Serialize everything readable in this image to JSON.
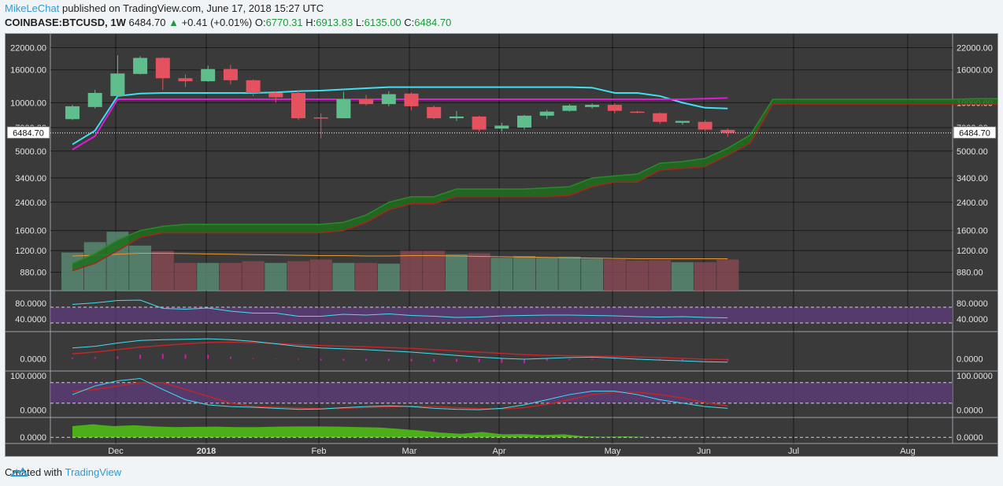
{
  "header": {
    "author": "MikeLeChat",
    "published_text": "published on TradingView.com, June 17, 2018 15:27 UTC"
  },
  "ticker": {
    "symbol": "COINBASE:BTCUSD, 1W",
    "last": "6484.70",
    "change": "+0.41 (+0.01%)",
    "open_label": "O:",
    "open": "6770.31",
    "high_label": "H:",
    "high": "6913.83",
    "low_label": "L:",
    "low": "6135.00",
    "close_label": "C:",
    "close": "6484.70"
  },
  "footer": {
    "created_with": "Created with",
    "brand": "TradingView"
  },
  "colors": {
    "background": "#3a3a3a",
    "up_candle": "#5fbe8c",
    "down_candle": "#e5525f",
    "cyan_line": "#3fe0f0",
    "magenta_line": "#e01ad8",
    "cloud": "#1f6e1f",
    "rsi_band": "#5e3c7e",
    "macd_hist": "#c81fa8",
    "obv_fill": "#4caf1a",
    "brand": "#2d9bd6"
  },
  "chart_data": {
    "type": "candlestick",
    "timeframe": "1W",
    "last_price_label": "6484.70",
    "price_axis_ticks": [
      "22000.00",
      "16000.00",
      "10000.00",
      "7000.00",
      "5000.00",
      "3400.00",
      "2400.00",
      "1600.00",
      "1200.00",
      "880.00"
    ],
    "price_axis_scale": "log",
    "x_axis_labels": [
      "Dec",
      "2018",
      "Feb",
      "Mar",
      "Apr",
      "May",
      "Jun",
      "Jul",
      "Aug"
    ],
    "candles": [
      {
        "o": 7900,
        "h": 9700,
        "l": 7800,
        "c": 9500
      },
      {
        "o": 9400,
        "h": 12000,
        "l": 9200,
        "c": 11500
      },
      {
        "o": 11000,
        "h": 19700,
        "l": 10900,
        "c": 15200
      },
      {
        "o": 15100,
        "h": 19500,
        "l": 15000,
        "c": 19000
      },
      {
        "o": 19000,
        "h": 19200,
        "l": 12000,
        "c": 14200
      },
      {
        "o": 14200,
        "h": 15000,
        "l": 12500,
        "c": 13600
      },
      {
        "o": 13600,
        "h": 17000,
        "l": 13500,
        "c": 16200
      },
      {
        "o": 16200,
        "h": 17200,
        "l": 13000,
        "c": 13800
      },
      {
        "o": 13800,
        "h": 14000,
        "l": 11000,
        "c": 11500
      },
      {
        "o": 11500,
        "h": 11800,
        "l": 10000,
        "c": 10800
      },
      {
        "o": 11500,
        "h": 12000,
        "l": 7800,
        "c": 8000
      },
      {
        "o": 8100,
        "h": 8600,
        "l": 6000,
        "c": 8000
      },
      {
        "o": 8000,
        "h": 11700,
        "l": 8000,
        "c": 10500
      },
      {
        "o": 10500,
        "h": 11200,
        "l": 9600,
        "c": 9800
      },
      {
        "o": 9800,
        "h": 11800,
        "l": 9500,
        "c": 11300
      },
      {
        "o": 11400,
        "h": 11600,
        "l": 9000,
        "c": 9500
      },
      {
        "o": 9400,
        "h": 9600,
        "l": 7900,
        "c": 8000
      },
      {
        "o": 8000,
        "h": 8900,
        "l": 7700,
        "c": 8200
      },
      {
        "o": 8200,
        "h": 8300,
        "l": 6600,
        "c": 6800
      },
      {
        "o": 6900,
        "h": 7500,
        "l": 6600,
        "c": 7200
      },
      {
        "o": 7000,
        "h": 8400,
        "l": 6800,
        "c": 8300
      },
      {
        "o": 8300,
        "h": 9000,
        "l": 7900,
        "c": 8800
      },
      {
        "o": 8900,
        "h": 9800,
        "l": 8800,
        "c": 9600
      },
      {
        "o": 9400,
        "h": 9900,
        "l": 9200,
        "c": 9700
      },
      {
        "o": 9700,
        "h": 9900,
        "l": 8600,
        "c": 8900
      },
      {
        "o": 8800,
        "h": 8900,
        "l": 8600,
        "c": 8700
      },
      {
        "o": 8600,
        "h": 8700,
        "l": 7400,
        "c": 7600
      },
      {
        "o": 7500,
        "h": 7700,
        "l": 7300,
        "c": 7700
      },
      {
        "o": 7600,
        "h": 7800,
        "l": 6600,
        "c": 6800
      },
      {
        "o": 6770.31,
        "h": 6913.83,
        "l": 6135,
        "c": 6484.7
      }
    ],
    "cyan_line": [
      5500,
      6700,
      11000,
      11400,
      11500,
      11500,
      11500,
      11500,
      11500,
      11600,
      11800,
      11900,
      12100,
      12300,
      12500,
      12500,
      12500,
      12500,
      12500,
      12500,
      12500,
      12500,
      12500,
      12400,
      11500,
      11500,
      11000,
      10000,
      9300,
      9200
    ],
    "magenta_line": [
      5100,
      6200,
      10500,
      10500,
      10500,
      10500,
      10500,
      10500,
      10500,
      10500,
      10500,
      10500,
      10500,
      10500,
      10500,
      10500,
      10500,
      10500,
      10500,
      10500,
      10500,
      10500,
      10500,
      10500,
      10500,
      10500,
      10500,
      10500,
      10600,
      10700
    ],
    "cloud_top": [
      1000,
      1150,
      1400,
      1600,
      1700,
      1750,
      1750,
      1750,
      1750,
      1750,
      1750,
      1750,
      1800,
      2000,
      2400,
      2600,
      2600,
      2900,
      2900,
      2900,
      2900,
      2950,
      3000,
      3400,
      3500,
      3600,
      4200,
      4300,
      4500,
      5200,
      6300,
      10500,
      10500,
      10500,
      10500,
      10500,
      10500,
      10500,
      10500,
      10500,
      10600,
      10600
    ],
    "cloud_bottom": [
      900,
      1000,
      1200,
      1450,
      1550,
      1550,
      1550,
      1550,
      1550,
      1550,
      1550,
      1550,
      1600,
      1800,
      2150,
      2350,
      2350,
      2600,
      2600,
      2600,
      2600,
      2600,
      2650,
      3000,
      3200,
      3200,
      3800,
      3900,
      4000,
      4700,
      5600,
      9800,
      9800,
      9800,
      9800,
      9800,
      9800,
      9800,
      9800,
      9800,
      9800,
      9800
    ],
    "volume": [
      1100,
      1400,
      1700,
      1300,
      1150,
      800,
      800,
      800,
      850,
      800,
      850,
      900,
      800,
      800,
      780,
      1150,
      1150,
      1050,
      1080,
      950,
      1000,
      950,
      980,
      920,
      900,
      870,
      880,
      820,
      820,
      900
    ],
    "volume_up": [
      true,
      true,
      true,
      true,
      false,
      false,
      true,
      false,
      false,
      true,
      false,
      false,
      true,
      false,
      true,
      false,
      false,
      true,
      false,
      true,
      true,
      true,
      true,
      true,
      false,
      false,
      false,
      true,
      false,
      false
    ],
    "volume_ma": [
      1000,
      1020,
      1050,
      1080,
      1080,
      1070,
      1060,
      1050,
      1040,
      1030,
      1020,
      1010,
      1010,
      1000,
      1000,
      1010,
      1010,
      1000,
      990,
      980,
      970,
      960,
      950,
      940,
      930,
      920,
      920,
      920,
      920,
      920
    ],
    "rsi": {
      "ticks": [
        "80.0000",
        "40.0000"
      ],
      "range": [
        20,
        100
      ],
      "values": [
        77,
        81,
        87,
        88,
        67,
        65,
        68,
        60,
        55,
        55,
        47,
        47,
        52,
        50,
        53,
        49,
        47,
        44,
        45,
        48,
        49,
        50,
        50,
        49,
        48,
        46,
        45,
        46,
        44,
        43
      ]
    },
    "macd": {
      "ticks": [
        "0.0000"
      ],
      "range": [
        -900,
        2700
      ],
      "macd": [
        1300,
        1500,
        1900,
        2200,
        2300,
        2350,
        2400,
        2300,
        2100,
        1800,
        1500,
        1300,
        1200,
        1100,
        950,
        800,
        600,
        400,
        200,
        50,
        -50,
        50,
        150,
        200,
        100,
        -50,
        -150,
        -250,
        -350,
        -400
      ],
      "signal": [
        600,
        800,
        1100,
        1400,
        1600,
        1800,
        1950,
        2000,
        1950,
        1850,
        1700,
        1600,
        1500,
        1450,
        1350,
        1250,
        1100,
        950,
        800,
        650,
        500,
        420,
        380,
        330,
        280,
        220,
        150,
        50,
        -50,
        -100
      ],
      "hist": [
        150,
        200,
        300,
        500,
        600,
        550,
        500,
        250,
        100,
        50,
        -100,
        -200,
        -200,
        -250,
        -250,
        -300,
        -350,
        -350,
        -400,
        -500,
        -550,
        -250,
        -150,
        -100,
        -120,
        -150,
        -200,
        -180,
        -200,
        -250
      ]
    },
    "stoch": {
      "ticks": [
        "100.0000",
        "0.0000"
      ],
      "range": [
        -8,
        100
      ],
      "k": [
        45,
        70,
        85,
        92,
        60,
        30,
        15,
        10,
        8,
        5,
        2,
        3,
        7,
        10,
        12,
        10,
        5,
        2,
        1,
        5,
        15,
        30,
        45,
        55,
        55,
        45,
        30,
        20,
        10,
        5
      ],
      "d": [
        55,
        60,
        70,
        80,
        80,
        60,
        40,
        20,
        10,
        8,
        6,
        4,
        5,
        7,
        9,
        11,
        10,
        7,
        4,
        3,
        7,
        17,
        30,
        45,
        52,
        52,
        45,
        35,
        22,
        12
      ]
    },
    "obv": {
      "ticks": [
        "0.0000"
      ],
      "range": [
        -60,
        650
      ],
      "values": [
        480,
        560,
        480,
        520,
        470,
        440,
        450,
        460,
        440,
        440,
        460,
        470,
        470,
        460,
        440,
        420,
        360,
        290,
        200,
        150,
        230,
        130,
        140,
        100,
        130,
        40,
        20,
        40,
        10,
        -20,
        10,
        -5,
        -20
      ]
    }
  }
}
